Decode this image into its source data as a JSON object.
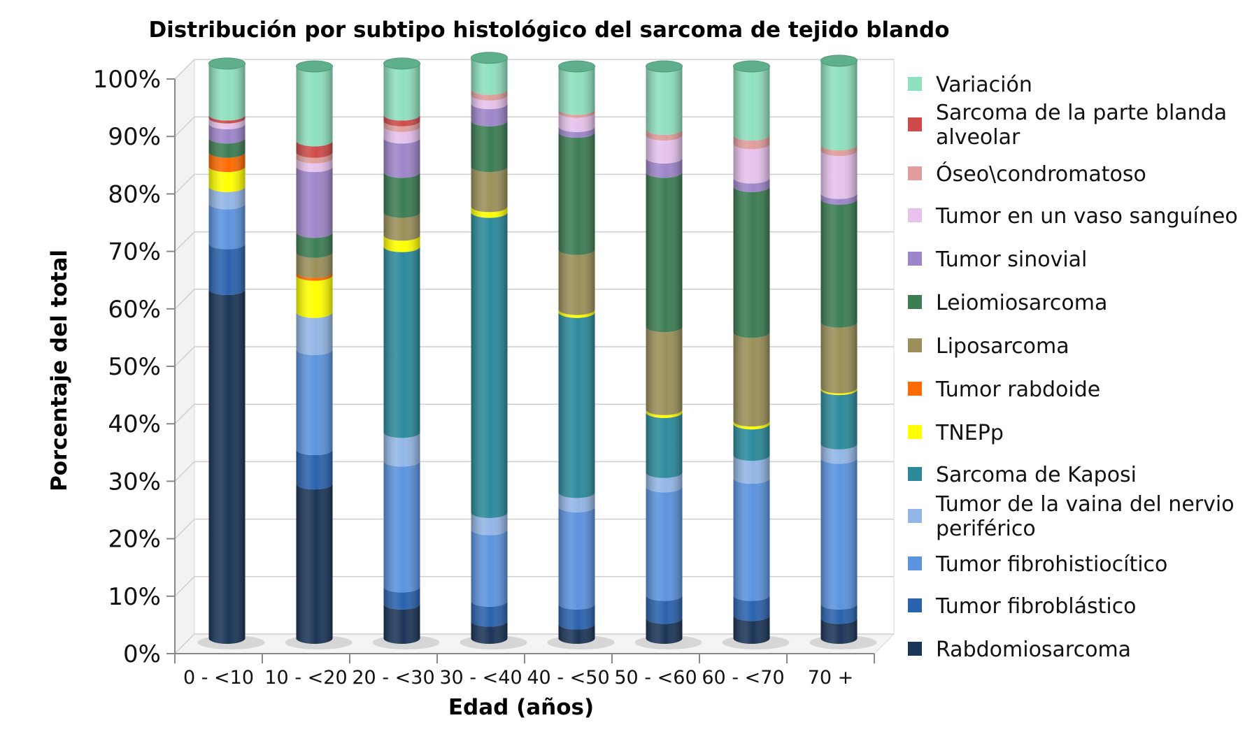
{
  "chart_data": {
    "type": "bar",
    "stacked": true,
    "percent_stacked": true,
    "title": "Distribución por subtipo histológico del sarcoma de tejido blando",
    "xlabel": "Edad (años)",
    "ylabel": "Porcentaje del total",
    "ylim": [
      0,
      100
    ],
    "yticks": [
      "0%",
      "10%",
      "20%",
      "30%",
      "40%",
      "50%",
      "60%",
      "70%",
      "80%",
      "90%",
      "100%"
    ],
    "grid": true,
    "legend_position": "right",
    "categories": [
      "0 - <10",
      "10 - <20",
      "20 - <30",
      "30 - <40",
      "40 - <50",
      "50 - <60",
      "60 - <70",
      "70 +"
    ],
    "series": [
      {
        "name": "Rabdomiosarcoma",
        "color": "#1b3558",
        "values": [
          61,
          27,
          6,
          3,
          2.5,
          3.5,
          4,
          3.5
        ]
      },
      {
        "name": "Tumor fibroblástico",
        "color": "#2a62ad",
        "values": [
          8,
          6,
          3,
          3.5,
          3.5,
          4,
          3.5,
          2.5
        ]
      },
      {
        "name": "Tumor fibrohistiocítico",
        "color": "#5b93de",
        "values": [
          7,
          17.5,
          22,
          12.5,
          17,
          19,
          20.5,
          25.5
        ]
      },
      {
        "name": "Tumor de la vaina del nervio periférico",
        "color": "#93b6e6",
        "values": [
          3,
          6.5,
          5,
          3,
          2.5,
          2.5,
          4,
          2.5
        ]
      },
      {
        "name": "Sarcoma de Kaposi",
        "color": "#2c8a9c",
        "values": [
          0,
          0,
          32.5,
          52.5,
          31.5,
          10.5,
          5.5,
          9.5
        ]
      },
      {
        "name": "TNEPp",
        "color": "#ffff00",
        "values": [
          3.5,
          6.5,
          2,
          1,
          0.5,
          0.5,
          0.5,
          0.3
        ]
      },
      {
        "name": "Tumor rabdoide",
        "color": "#ff6a00",
        "values": [
          2.5,
          0.5,
          0,
          0,
          0,
          0,
          0,
          0
        ]
      },
      {
        "name": "Liposarcoma",
        "color": "#9b905a",
        "values": [
          0,
          3.5,
          4,
          7,
          10.5,
          14.5,
          15.5,
          11.5
        ]
      },
      {
        "name": "Leiomiosarcoma",
        "color": "#3d7d54",
        "values": [
          2.5,
          3.5,
          7,
          8,
          20.5,
          27,
          25.5,
          21.5
        ]
      },
      {
        "name": "Tumor sinovial",
        "color": "#9d85c9",
        "values": [
          2.5,
          11.5,
          6,
          3,
          1,
          2.5,
          1.5,
          1
        ]
      },
      {
        "name": "Tumor en un vaso sanguíneo",
        "color": "#e6c2ec",
        "values": [
          1,
          1.5,
          2,
          1.5,
          2.5,
          4,
          6,
          7.5
        ]
      },
      {
        "name": "Óseo\\condromatoso",
        "color": "#e09d9d",
        "values": [
          0,
          1,
          1,
          1,
          0.5,
          1,
          1.5,
          1
        ]
      },
      {
        "name": "Sarcoma de la parte blanda alveolar",
        "color": "#cf4a4a",
        "values": [
          0.5,
          2,
          1,
          0,
          0,
          0,
          0,
          0
        ]
      },
      {
        "name": "Variación",
        "color": "#8fe0be",
        "values": [
          9,
          13,
          9,
          5.5,
          7.5,
          11,
          12,
          14.7
        ]
      }
    ],
    "legend_order": [
      "Variación",
      "Sarcoma de la parte blanda alveolar",
      "Óseo\\condromatoso",
      "Tumor en un vaso sanguíneo",
      "Tumor sinovial",
      "Leiomiosarcoma",
      "Liposarcoma",
      "Tumor rabdoide",
      "TNEPp",
      "Sarcoma de Kaposi",
      "Tumor de la vaina del nervio periférico",
      "Tumor fibrohistiocítico",
      "Tumor fibroblástico",
      "Rabdomiosarcoma"
    ]
  }
}
